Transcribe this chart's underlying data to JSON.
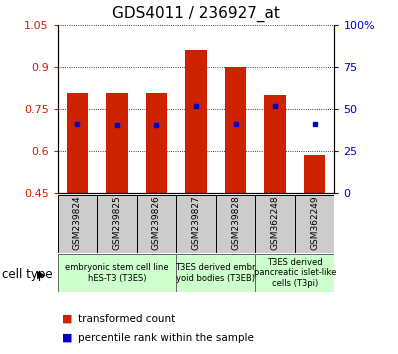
{
  "title": "GDS4011 / 236927_at",
  "samples": [
    "GSM239824",
    "GSM239825",
    "GSM239826",
    "GSM239827",
    "GSM239828",
    "GSM362248",
    "GSM362249"
  ],
  "transformed_count": [
    0.805,
    0.805,
    0.805,
    0.96,
    0.9,
    0.8,
    0.585
  ],
  "percentile_rank": [
    0.695,
    0.693,
    0.693,
    0.76,
    0.695,
    0.76,
    0.695
  ],
  "ylim_left": [
    0.45,
    1.05
  ],
  "ylim_right": [
    0,
    100
  ],
  "yticks_left": [
    0.45,
    0.6,
    0.75,
    0.9,
    1.05
  ],
  "yticks_right": [
    0,
    25,
    50,
    75,
    100
  ],
  "ytick_labels_left": [
    "0.45",
    "0.6",
    "0.75",
    "0.9",
    "1.05"
  ],
  "ytick_labels_right": [
    "0",
    "25",
    "50",
    "75",
    "100%"
  ],
  "bar_color": "#cc2200",
  "dot_color": "#0000cc",
  "bar_width": 0.55,
  "tick_label_fontsize": 8,
  "title_fontsize": 11,
  "tick_area_bg": "#cccccc",
  "cell_bg": "#ccffcc",
  "group_bounds": [
    [
      0,
      2,
      "embryonic stem cell line\nhES-T3 (T3ES)"
    ],
    [
      3,
      4,
      "T3ES derived embr\nyoid bodies (T3EB)"
    ],
    [
      5,
      6,
      "T3ES derived\npancreatic islet-like\ncells (T3pi)"
    ]
  ],
  "legend_items": [
    {
      "label": "transformed count",
      "color": "#cc2200"
    },
    {
      "label": "percentile rank within the sample",
      "color": "#0000cc"
    }
  ],
  "cell_type_label": "cell type"
}
